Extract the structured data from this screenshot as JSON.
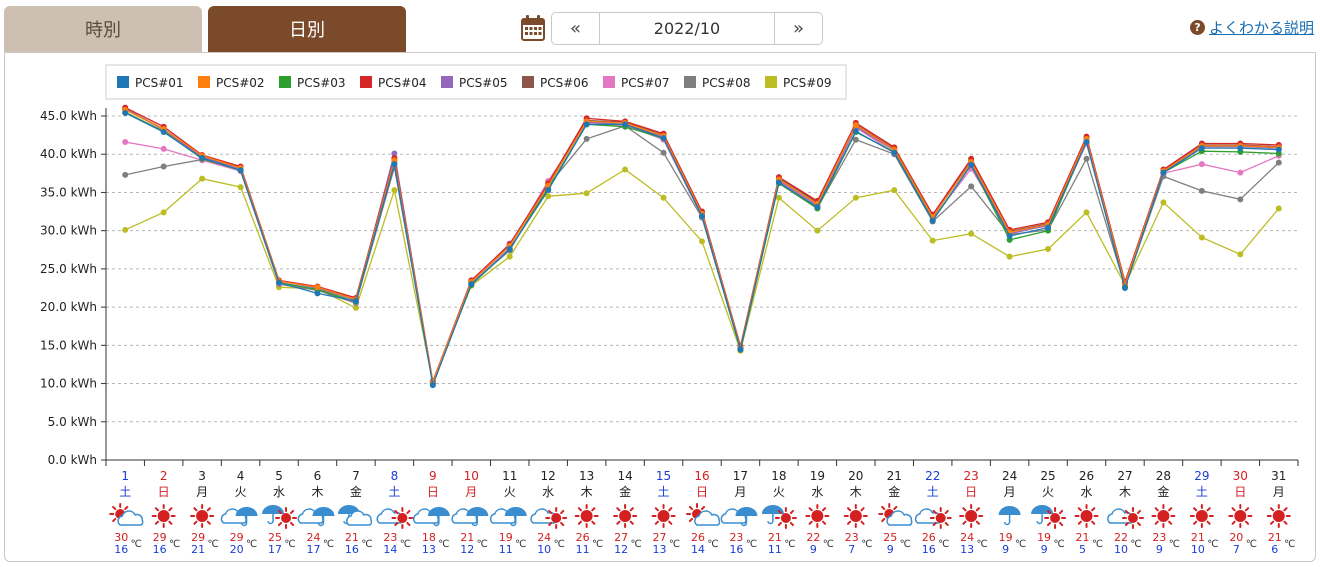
{
  "tabs": {
    "hourly": "時別",
    "daily": "日別"
  },
  "date_nav": {
    "prev": "«",
    "date": "2022/10",
    "next": "»"
  },
  "help": {
    "icon": "?",
    "label": "よくわかる説明"
  },
  "colors": {
    "brand_dark": "#7a4a2a",
    "brand_light": "#cdbfb2",
    "saturday": "#1a3ed6",
    "holiday": "#d42020",
    "weekday": "#222222"
  },
  "chart_data": {
    "type": "line",
    "ylim": [
      0,
      45
    ],
    "yticks": [
      "0.0 kWh",
      "5.0 kWh",
      "10.0 kWh",
      "15.0 kWh",
      "20.0 kWh",
      "25.0 kWh",
      "30.0 kWh",
      "35.0 kWh",
      "40.0 kWh",
      "45.0 kWh"
    ],
    "ytick_values": [
      0,
      5,
      10,
      15,
      20,
      25,
      30,
      35,
      40,
      45
    ],
    "grid": true,
    "legend_position": "top-left",
    "x": [
      "1",
      "2",
      "3",
      "4",
      "5",
      "6",
      "7",
      "8",
      "9",
      "10",
      "11",
      "12",
      "13",
      "14",
      "15",
      "16",
      "17",
      "18",
      "19",
      "20",
      "21",
      "22",
      "23",
      "24",
      "25",
      "26",
      "27",
      "28",
      "29",
      "30",
      "31"
    ],
    "weekdays": [
      "土",
      "日",
      "月",
      "火",
      "水",
      "木",
      "金",
      "土",
      "日",
      "月",
      "火",
      "水",
      "木",
      "金",
      "土",
      "日",
      "月",
      "火",
      "水",
      "木",
      "金",
      "土",
      "日",
      "月",
      "火",
      "水",
      "木",
      "金",
      "土",
      "日",
      "月"
    ],
    "day_types": [
      "sat",
      "hol",
      "wk",
      "wk",
      "wk",
      "wk",
      "wk",
      "sat",
      "hol",
      "hol",
      "wk",
      "wk",
      "wk",
      "wk",
      "sat",
      "hol",
      "wk",
      "wk",
      "wk",
      "wk",
      "wk",
      "sat",
      "hol",
      "wk",
      "wk",
      "wk",
      "wk",
      "wk",
      "sat",
      "hol",
      "wk"
    ],
    "weather": [
      "sun-cloud",
      "sun",
      "sun",
      "cloud-rain",
      "rain-sun",
      "cloud-rain",
      "cloud-rain-sun",
      "cloud-sun",
      "cloud-rain",
      "cloud-rain",
      "cloud-rain",
      "cloud-sun",
      "sun",
      "sun",
      "sun",
      "sun-cloud",
      "cloud-rain",
      "rain-sun",
      "sun",
      "sun",
      "sun-cloud",
      "cloud-sun",
      "sun",
      "rain",
      "rain-sun",
      "sun",
      "cloud-sun",
      "sun",
      "sun",
      "sun",
      "sun"
    ],
    "temp_high": [
      "30",
      "29",
      "29",
      "29",
      "25",
      "24",
      "21",
      "23",
      "18",
      "21",
      "19",
      "24",
      "26",
      "27",
      "27",
      "26",
      "23",
      "21",
      "22",
      "23",
      "25",
      "26",
      "24",
      "19",
      "19",
      "21",
      "22",
      "23",
      "21",
      "20",
      "21"
    ],
    "temp_low": [
      "16",
      "16",
      "21",
      "20",
      "17",
      "17",
      "16",
      "14",
      "13",
      "12",
      "11",
      "10",
      "11",
      "12",
      "13",
      "14",
      "16",
      "11",
      "9",
      "7",
      "9",
      "16",
      "13",
      "9",
      "9",
      "5",
      "10",
      "9",
      "10",
      "7",
      "6"
    ],
    "temp_unit": "℃",
    "series": [
      {
        "name": "PCS#01",
        "color": "#1f77b4",
        "values": [
          45.4,
          42.9,
          39.5,
          37.9,
          23.2,
          21.8,
          20.8,
          38.7,
          9.8,
          23.0,
          27.6,
          35.3,
          43.9,
          43.9,
          42.1,
          31.9,
          14.5,
          36.3,
          33.1,
          43.0,
          40.2,
          31.3,
          38.6,
          29.3,
          30.4,
          41.6,
          22.5,
          37.6,
          40.8,
          40.8,
          40.6
        ]
      },
      {
        "name": "PCS#02",
        "color": "#ff7f0e",
        "values": [
          45.8,
          43.3,
          39.8,
          38.2,
          23.4,
          22.6,
          21.0,
          39.2,
          10.2,
          23.3,
          28.0,
          35.9,
          44.3,
          44.1,
          42.4,
          32.2,
          14.7,
          36.7,
          33.5,
          43.8,
          40.6,
          31.8,
          39.0,
          29.8,
          30.8,
          42.0,
          23.0,
          37.8,
          41.1,
          41.1,
          40.9
        ]
      },
      {
        "name": "PCS#03",
        "color": "#2ca02c",
        "values": [
          45.5,
          43.0,
          39.4,
          37.9,
          23.2,
          22.3,
          20.7,
          38.8,
          10.0,
          22.9,
          27.6,
          35.5,
          43.9,
          43.6,
          42.1,
          31.9,
          14.4,
          36.2,
          32.9,
          42.9,
          40.3,
          31.4,
          38.6,
          28.8,
          30.0,
          41.7,
          22.7,
          37.6,
          40.4,
          40.3,
          40.1
        ]
      },
      {
        "name": "PCS#04",
        "color": "#d62728",
        "values": [
          46.1,
          43.6,
          39.9,
          38.4,
          23.5,
          22.7,
          21.2,
          39.5,
          10.3,
          23.5,
          28.2,
          36.2,
          44.7,
          44.3,
          42.7,
          32.5,
          14.9,
          37.0,
          33.9,
          44.1,
          40.9,
          32.1,
          39.4,
          30.1,
          31.1,
          42.3,
          23.3,
          38.0,
          41.4,
          41.4,
          41.2
        ]
      },
      {
        "name": "PCS#05",
        "color": "#9467bd",
        "values": [
          45.9,
          43.2,
          39.6,
          38.1,
          23.4,
          22.5,
          20.9,
          40.1,
          10.1,
          23.3,
          28.3,
          36.0,
          44.2,
          43.9,
          42.3,
          32.1,
          14.6,
          36.6,
          33.4,
          43.6,
          40.5,
          31.9,
          38.9,
          29.6,
          30.7,
          41.9,
          22.9,
          37.7,
          41.0,
          41.0,
          40.8
        ]
      },
      {
        "name": "PCS#06",
        "color": "#8c564b",
        "values": [
          45.9,
          43.3,
          39.7,
          38.3,
          23.4,
          22.6,
          21.0,
          39.3,
          10.2,
          23.4,
          28.1,
          36.1,
          44.4,
          44.2,
          42.5,
          32.3,
          14.8,
          36.9,
          33.7,
          43.9,
          40.7,
          32.0,
          39.1,
          29.9,
          30.9,
          42.1,
          23.1,
          37.9,
          41.2,
          41.2,
          41.0
        ]
      },
      {
        "name": "PCS#07",
        "color": "#e377c2",
        "values": [
          41.6,
          40.7,
          39.2,
          37.8,
          23.1,
          22.4,
          20.6,
          39.1,
          10.1,
          23.2,
          27.9,
          36.5,
          44.0,
          43.8,
          41.9,
          31.8,
          14.6,
          36.5,
          33.2,
          43.5,
          40.2,
          31.6,
          38.1,
          29.9,
          30.6,
          41.4,
          22.8,
          37.5,
          38.7,
          37.6,
          39.8
        ]
      },
      {
        "name": "PCS#08",
        "color": "#7f7f7f",
        "values": [
          37.3,
          38.4,
          39.3,
          37.8,
          23.0,
          22.2,
          20.5,
          38.3,
          10.1,
          23.1,
          27.4,
          35.9,
          42.0,
          43.7,
          40.2,
          31.7,
          14.5,
          36.4,
          33.0,
          41.9,
          40.0,
          31.2,
          35.8,
          29.5,
          30.1,
          39.4,
          22.7,
          37.1,
          35.2,
          34.1,
          38.9
        ]
      },
      {
        "name": "PCS#09",
        "color": "#bcbd22",
        "values": [
          30.1,
          32.4,
          36.8,
          35.7,
          22.6,
          22.4,
          19.9,
          35.3,
          10.2,
          22.8,
          26.6,
          34.5,
          34.9,
          38.0,
          34.3,
          28.6,
          14.3,
          34.3,
          30.0,
          34.3,
          35.3,
          28.7,
          29.6,
          26.6,
          27.6,
          32.4,
          22.9,
          33.7,
          29.1,
          26.9,
          32.9
        ]
      }
    ]
  }
}
